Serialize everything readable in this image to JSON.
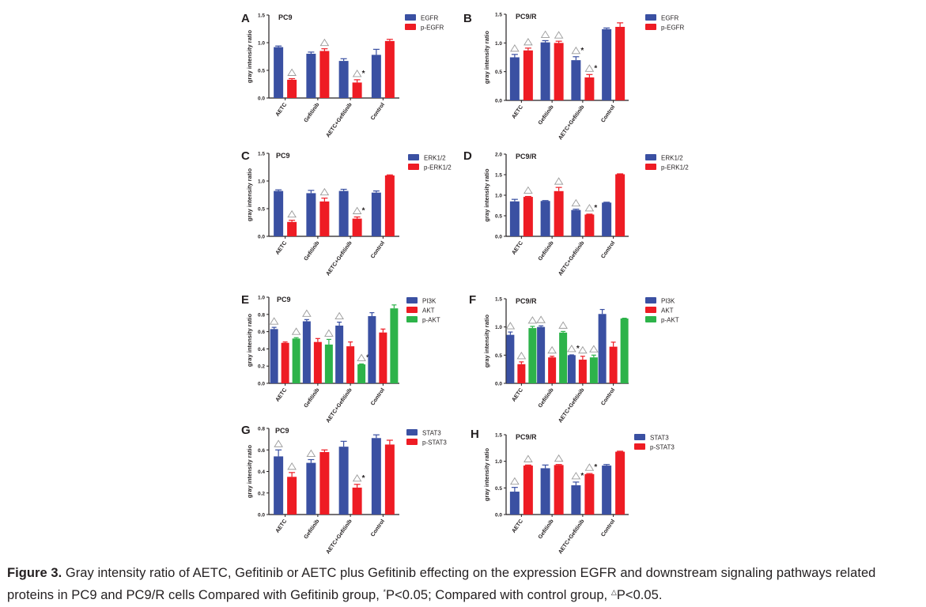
{
  "figure": {
    "caption_label": "Figure 3.",
    "caption_text_1": " Gray intensity ratio of AETC, Gefitinib or AETC plus Gefitinib effecting on the expression EGFR and downstream signaling pathways related proteins in PC9 and PC9/R cells Compared with Gefitinib group, ",
    "caption_star": "*",
    "caption_text_2": "P<0.05; Compared with control group, ",
    "caption_triangle": "△",
    "caption_text_3": "P<0.05."
  },
  "colors": {
    "blue": "#3a50a2",
    "red": "#ee1c24",
    "green": "#2db34a",
    "axis": "#231f20",
    "marker": "#9a9a9a"
  },
  "chart_data": [
    {
      "panel": "A",
      "type": "bar",
      "title": "PC9",
      "ylabel": "gray intensity ratio",
      "xlabel": "",
      "categories": [
        "AETC",
        "Gefitinib",
        "AETC+Gefitinib",
        "Control"
      ],
      "ylim": [
        0,
        1.5
      ],
      "yticks": [
        "0.0",
        "0.5",
        "1.0",
        "1.5"
      ],
      "legend_position": "top-right",
      "grid": false,
      "series": [
        {
          "name": "EGFR",
          "color": "blue",
          "values": [
            0.92,
            0.8,
            0.67,
            0.78
          ],
          "errors": [
            0.02,
            0.03,
            0.04,
            0.1
          ],
          "marks": [
            "",
            "",
            "",
            ""
          ]
        },
        {
          "name": "p-EGFR",
          "color": "red",
          "values": [
            0.33,
            0.85,
            0.28,
            1.03
          ],
          "errors": [
            0.02,
            0.04,
            0.05,
            0.03
          ],
          "marks": [
            "△",
            "△",
            "△*",
            ""
          ]
        }
      ]
    },
    {
      "panel": "B",
      "type": "bar",
      "title": "PC9/R",
      "ylabel": "gray intensity ratio",
      "xlabel": "",
      "categories": [
        "AETC",
        "Gefitinib",
        "AETC+Gefitinib",
        "Control"
      ],
      "ylim": [
        0,
        1.5
      ],
      "yticks": [
        "0.0",
        "0.5",
        "1.0",
        "1.5"
      ],
      "legend_position": "top-right",
      "grid": false,
      "series": [
        {
          "name": "EGFR",
          "color": "blue",
          "values": [
            0.75,
            1.01,
            0.7,
            1.24
          ],
          "errors": [
            0.05,
            0.03,
            0.06,
            0.02
          ],
          "marks": [
            "△",
            "△",
            "△*",
            ""
          ]
        },
        {
          "name": "p-EGFR",
          "color": "red",
          "values": [
            0.87,
            1.0,
            0.4,
            1.28
          ],
          "errors": [
            0.04,
            0.03,
            0.05,
            0.07
          ],
          "marks": [
            "△",
            "△",
            "△*",
            ""
          ]
        }
      ]
    },
    {
      "panel": "C",
      "type": "bar",
      "title": "PC9",
      "ylabel": "gray intensity ratio",
      "xlabel": "",
      "categories": [
        "AETC",
        "Gefitinib",
        "AETC+Gefitinib",
        "Control"
      ],
      "ylim": [
        0,
        1.5
      ],
      "yticks": [
        "0.0",
        "0.5",
        "1.0",
        "1.5"
      ],
      "legend_position": "top-right",
      "grid": false,
      "series": [
        {
          "name": "ERK1/2",
          "color": "blue",
          "values": [
            0.82,
            0.78,
            0.82,
            0.79
          ],
          "errors": [
            0.02,
            0.05,
            0.03,
            0.03
          ],
          "marks": [
            "",
            "",
            "",
            ""
          ]
        },
        {
          "name": "p-ERK1/2",
          "color": "red",
          "values": [
            0.26,
            0.63,
            0.32,
            1.1
          ],
          "errors": [
            0.03,
            0.06,
            0.03,
            0.01
          ],
          "marks": [
            "△",
            "△",
            "△*",
            ""
          ]
        }
      ]
    },
    {
      "panel": "D",
      "type": "bar",
      "title": "PC9/R",
      "ylabel": "gray intensity ratio",
      "xlabel": "",
      "categories": [
        "AETC",
        "Gefitinib",
        "AETC+Gefitinib",
        "Control"
      ],
      "ylim": [
        0,
        2.0
      ],
      "yticks": [
        "0.0",
        "0.5",
        "1.0",
        "1.5",
        "2.0"
      ],
      "legend_position": "top-right",
      "grid": false,
      "series": [
        {
          "name": "ERK1/2",
          "color": "blue",
          "values": [
            0.85,
            0.86,
            0.64,
            0.82
          ],
          "errors": [
            0.05,
            0.01,
            0.02,
            0.01
          ],
          "marks": [
            "",
            "",
            "△",
            ""
          ]
        },
        {
          "name": "p-ERK1/2",
          "color": "red",
          "values": [
            0.96,
            1.1,
            0.53,
            1.51
          ],
          "errors": [
            0.01,
            0.09,
            0.01,
            0.01
          ],
          "marks": [
            "△",
            "△",
            "△*",
            ""
          ]
        }
      ]
    },
    {
      "panel": "E",
      "type": "bar",
      "title": "PC9",
      "ylabel": "gray intensity ratio",
      "xlabel": "",
      "categories": [
        "AETC",
        "Gefitinib",
        "AETC+Gefitinib",
        "Control"
      ],
      "ylim": [
        0,
        1.0
      ],
      "yticks": [
        "0.0",
        "0.2",
        "0.4",
        "0.6",
        "0.8",
        "1.0"
      ],
      "legend_position": "top-right",
      "grid": false,
      "series": [
        {
          "name": "PI3K",
          "color": "blue",
          "values": [
            0.63,
            0.72,
            0.67,
            0.78
          ],
          "errors": [
            0.02,
            0.02,
            0.04,
            0.04
          ],
          "marks": [
            "△",
            "△",
            "△",
            ""
          ]
        },
        {
          "name": "AKT",
          "color": "red",
          "values": [
            0.47,
            0.48,
            0.43,
            0.59
          ],
          "errors": [
            0.01,
            0.04,
            0.05,
            0.04
          ],
          "marks": [
            "",
            "",
            "",
            ""
          ]
        },
        {
          "name": "p-AKT",
          "color": "green",
          "values": [
            0.52,
            0.45,
            0.22,
            0.87
          ],
          "errors": [
            0.01,
            0.06,
            0.005,
            0.04
          ],
          "marks": [
            "△",
            "△",
            "△*",
            ""
          ]
        }
      ]
    },
    {
      "panel": "F",
      "type": "bar",
      "title": "PC9/R",
      "ylabel": "gray intensity ratio",
      "xlabel": "",
      "categories": [
        "AETC",
        "Gefitinib",
        "AETC+Gefitinib",
        "Control"
      ],
      "ylim": [
        0,
        1.5
      ],
      "yticks": [
        "0.0",
        "0.5",
        "1.0",
        "1.5"
      ],
      "legend_position": "top-right",
      "grid": false,
      "series": [
        {
          "name": "PI3K",
          "color": "blue",
          "values": [
            0.86,
            1.0,
            0.5,
            1.23
          ],
          "errors": [
            0.05,
            0.02,
            0.005,
            0.08
          ],
          "marks": [
            "△",
            "△",
            "△*",
            ""
          ]
        },
        {
          "name": "AKT",
          "color": "red",
          "values": [
            0.34,
            0.46,
            0.42,
            0.65
          ],
          "errors": [
            0.04,
            0.02,
            0.06,
            0.08
          ],
          "marks": [
            "△",
            "△",
            "△",
            ""
          ]
        },
        {
          "name": "p-AKT",
          "color": "green",
          "values": [
            0.98,
            0.9,
            0.46,
            1.15
          ],
          "errors": [
            0.03,
            0.02,
            0.04,
            0.005
          ],
          "marks": [
            "△",
            "△",
            "△*",
            ""
          ]
        }
      ]
    },
    {
      "panel": "G",
      "type": "bar",
      "title": "PC9",
      "ylabel": "gray intensity ratio",
      "xlabel": "",
      "categories": [
        "AETC",
        "Gefitinib",
        "AETC+Gefitinib",
        "Control"
      ],
      "ylim": [
        0,
        0.8
      ],
      "yticks": [
        "0.0",
        "0.2",
        "0.4",
        "0.6",
        "0.8"
      ],
      "legend_position": "top-right",
      "grid": false,
      "series": [
        {
          "name": "STAT3",
          "color": "blue",
          "values": [
            0.54,
            0.48,
            0.63,
            0.71
          ],
          "errors": [
            0.06,
            0.03,
            0.05,
            0.03
          ],
          "marks": [
            "△",
            "△",
            "",
            ""
          ]
        },
        {
          "name": "p-STAT3",
          "color": "red",
          "values": [
            0.35,
            0.58,
            0.25,
            0.65
          ],
          "errors": [
            0.04,
            0.02,
            0.03,
            0.04
          ],
          "marks": [
            "△",
            "",
            "△*",
            ""
          ]
        }
      ]
    },
    {
      "panel": "H",
      "type": "bar",
      "title": "PC9/R",
      "ylabel": "gray intensity ratio",
      "xlabel": "",
      "categories": [
        "AETC",
        "Gefitinib",
        "AETC+Gefitinib",
        "Control"
      ],
      "ylim": [
        0,
        1.5
      ],
      "yticks": [
        "0.0",
        "0.5",
        "1.0",
        "1.5"
      ],
      "legend_position": "top-right",
      "grid": false,
      "series": [
        {
          "name": "STAT3",
          "color": "blue",
          "values": [
            0.43,
            0.87,
            0.55,
            0.92
          ],
          "errors": [
            0.08,
            0.06,
            0.06,
            0.02
          ],
          "marks": [
            "△",
            "",
            "△*",
            ""
          ]
        },
        {
          "name": "p-STAT3",
          "color": "red",
          "values": [
            0.92,
            0.93,
            0.76,
            1.18
          ],
          "errors": [
            0.01,
            0.01,
            0.01,
            0.01
          ],
          "marks": [
            "△",
            "△",
            "△*",
            ""
          ]
        }
      ]
    }
  ]
}
